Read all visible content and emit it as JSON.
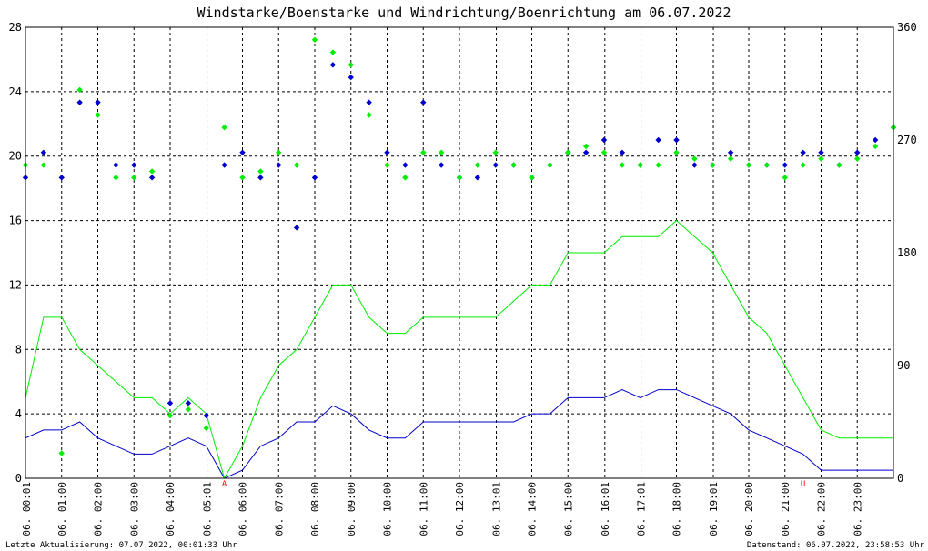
{
  "title": {
    "part1": "Windstarke",
    "sep1": "/",
    "part2": "Boenstarke",
    "mid": " und ",
    "part3": "Windrichtung",
    "sep2": "/",
    "part4": "Boenrichtung",
    "tail": " am 06.07.2022"
  },
  "colors": {
    "wind": "#0000cc",
    "gust": "#00ee00",
    "grid": "#000000",
    "axis": "#000000",
    "marker": "#ff0000",
    "background": "#ffffff"
  },
  "footer": {
    "left": "Letzte Aktualisierung: 07.07.2022, 00:01:33 Uhr",
    "right": "Datenstand: 06.07.2022, 23:58:53 Uhr"
  },
  "markers": [
    {
      "label": "A",
      "x": 5.5
    },
    {
      "label": "U",
      "x": 21.5
    }
  ],
  "chart_data": {
    "type": "scatter",
    "x_unit": "hour of day 06.07.2022",
    "xlim": [
      0,
      24
    ],
    "x_ticks": [
      {
        "x": 0.02,
        "label": "06. 00:01"
      },
      {
        "x": 1.0,
        "label": "06. 01:00"
      },
      {
        "x": 2.0,
        "label": "06. 02:00"
      },
      {
        "x": 3.0,
        "label": "06. 03:00"
      },
      {
        "x": 4.0,
        "label": "06. 04:00"
      },
      {
        "x": 5.02,
        "label": "06. 05:01"
      },
      {
        "x": 6.0,
        "label": "06. 06:00"
      },
      {
        "x": 7.0,
        "label": "06. 07:00"
      },
      {
        "x": 8.0,
        "label": "06. 08:00"
      },
      {
        "x": 9.0,
        "label": "06. 09:00"
      },
      {
        "x": 10.0,
        "label": "06. 10:00"
      },
      {
        "x": 11.0,
        "label": "06. 11:00"
      },
      {
        "x": 12.0,
        "label": "06. 12:00"
      },
      {
        "x": 13.02,
        "label": "06. 13:01"
      },
      {
        "x": 14.0,
        "label": "06. 14:00"
      },
      {
        "x": 15.0,
        "label": "06. 15:00"
      },
      {
        "x": 16.02,
        "label": "06. 16:01"
      },
      {
        "x": 17.02,
        "label": "06. 17:01"
      },
      {
        "x": 18.0,
        "label": "06. 18:00"
      },
      {
        "x": 19.02,
        "label": "06. 19:01"
      },
      {
        "x": 20.0,
        "label": "06. 20:00"
      },
      {
        "x": 21.0,
        "label": "06. 21:00"
      },
      {
        "x": 22.0,
        "label": "06. 22:00"
      },
      {
        "x": 23.0,
        "label": "06. 23:00"
      }
    ],
    "y_left": {
      "lim": [
        0,
        28
      ],
      "ticks": [
        0,
        4,
        8,
        12,
        16,
        20,
        24,
        28
      ]
    },
    "y_right": {
      "lim": [
        0,
        360
      ],
      "ticks": [
        0,
        90,
        180,
        270,
        360
      ]
    },
    "grid": true,
    "series": [
      {
        "name": "Windstarke",
        "kind": "line",
        "axis": "left",
        "color": "#0000cc",
        "x": [
          0,
          0.5,
          1,
          1.5,
          2,
          2.5,
          3,
          3.5,
          4,
          4.5,
          5,
          5.5,
          6,
          6.5,
          7,
          7.5,
          8,
          8.5,
          9,
          9.5,
          10,
          10.5,
          11,
          11.5,
          12,
          12.5,
          13,
          13.5,
          14,
          14.5,
          15,
          15.5,
          16,
          16.5,
          17,
          17.5,
          18,
          18.5,
          19,
          19.5,
          20,
          20.5,
          21,
          21.5,
          22,
          22.5,
          23,
          23.5,
          24
        ],
        "y": [
          2.5,
          3,
          3,
          3.5,
          2.5,
          2,
          1.5,
          1.5,
          2,
          2.5,
          2,
          0,
          0.5,
          2,
          2.5,
          3.5,
          3.5,
          4.5,
          4,
          3,
          2.5,
          2.5,
          3.5,
          3.5,
          3.5,
          3.5,
          3.5,
          3.5,
          4,
          4,
          5,
          5,
          5,
          5.5,
          5,
          5.5,
          5.5,
          5,
          4.5,
          4,
          3,
          2.5,
          2,
          1.5,
          0.5,
          0.5,
          0.5,
          0.5,
          0.5
        ]
      },
      {
        "name": "Boenstarke",
        "kind": "line",
        "axis": "left",
        "color": "#00ee00",
        "x": [
          0,
          0.5,
          1,
          1.5,
          2,
          2.5,
          3,
          3.5,
          4,
          4.5,
          5,
          5.5,
          6,
          6.5,
          7,
          7.5,
          8,
          8.5,
          9,
          9.5,
          10,
          10.5,
          11,
          11.5,
          12,
          12.5,
          13,
          13.5,
          14,
          14.5,
          15,
          15.5,
          16,
          16.5,
          17,
          17.5,
          18,
          18.5,
          19,
          19.5,
          20,
          20.5,
          21,
          21.5,
          22,
          22.5,
          23,
          23.5,
          24
        ],
        "y": [
          5,
          10,
          10,
          8,
          7,
          6,
          5,
          5,
          4,
          5,
          4,
          0,
          2,
          5,
          7,
          8,
          10,
          12,
          12,
          10,
          9,
          9,
          10,
          10,
          10,
          10,
          10,
          11,
          12,
          12,
          14,
          14,
          14,
          15,
          15,
          15,
          16,
          15,
          14,
          12,
          10,
          9,
          7,
          5,
          3,
          2.5,
          2.5,
          2.5,
          2.5
        ]
      },
      {
        "name": "Windrichtung",
        "kind": "scatter",
        "axis": "right",
        "color": "#0000cc",
        "x": [
          0,
          0.5,
          1,
          1.5,
          2,
          2.5,
          3,
          3.5,
          4,
          4.5,
          5,
          5.5,
          6,
          6.5,
          7,
          7.5,
          8,
          8.5,
          9,
          9.5,
          10,
          10.5,
          11,
          11.5,
          12,
          12.5,
          13,
          13.5,
          14,
          14.5,
          15,
          15.5,
          16,
          16.5,
          17,
          17.5,
          18,
          18.5,
          19,
          19.5,
          20,
          20.5,
          21,
          21.5,
          22,
          22.5,
          23,
          23.5,
          24
        ],
        "y": [
          240,
          260,
          240,
          300,
          300,
          250,
          250,
          240,
          60,
          60,
          50,
          250,
          260,
          240,
          250,
          200,
          240,
          330,
          320,
          300,
          260,
          250,
          300,
          250,
          240,
          240,
          250,
          250,
          240,
          250,
          260,
          260,
          270,
          260,
          250,
          270,
          270,
          250,
          250,
          260,
          250,
          250,
          250,
          260,
          260,
          250,
          260,
          270,
          280
        ]
      },
      {
        "name": "Boenrichtung",
        "kind": "scatter",
        "axis": "right",
        "color": "#00ee00",
        "x": [
          0,
          0.5,
          1,
          1.5,
          2,
          2.5,
          3,
          3.5,
          4,
          4.5,
          5,
          5.5,
          6,
          6.5,
          7,
          7.5,
          8,
          8.5,
          9,
          9.5,
          10,
          10.5,
          11,
          11.5,
          12,
          12.5,
          13,
          13.5,
          14,
          14.5,
          15,
          15.5,
          16,
          16.5,
          17,
          17.5,
          18,
          18.5,
          19,
          19.5,
          20,
          20.5,
          21,
          21.5,
          22,
          22.5,
          23,
          23.5,
          24
        ],
        "y": [
          250,
          250,
          20,
          310,
          290,
          240,
          240,
          245,
          50,
          55,
          40,
          280,
          240,
          245,
          260,
          250,
          350,
          340,
          330,
          290,
          250,
          240,
          260,
          260,
          240,
          250,
          260,
          250,
          240,
          250,
          260,
          265,
          260,
          250,
          250,
          250,
          260,
          255,
          250,
          255,
          250,
          250,
          240,
          250,
          255,
          250,
          255,
          265,
          280
        ]
      }
    ]
  }
}
